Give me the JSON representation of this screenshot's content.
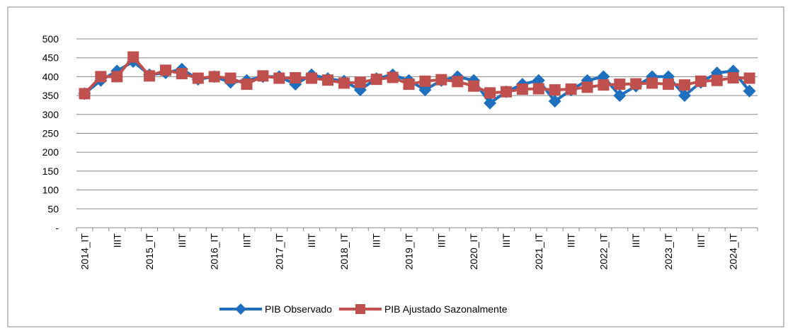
{
  "chart_data": {
    "type": "line",
    "categories": [
      "2014_IT",
      null,
      "IIIT",
      null,
      "2015_IT",
      null,
      "IIIT",
      null,
      "2016_IT",
      null,
      "IIIT",
      null,
      "2017_IT",
      null,
      "IIIT",
      null,
      "2018_IT",
      null,
      "IIIT",
      null,
      "2019_IT",
      null,
      "IIIT",
      null,
      "2020_IT",
      null,
      "IIIT",
      null,
      "2021_IT",
      null,
      "IIIT",
      null,
      "2022_IT",
      null,
      "IIIT",
      null,
      "2023_IT",
      null,
      "IIIT",
      null,
      "2024_IT",
      null
    ],
    "series": [
      {
        "name": "PIB Observado",
        "color": "#1f6fbf",
        "marker": "diamond",
        "values": [
          355,
          390,
          415,
          440,
          405,
          410,
          420,
          393,
          400,
          385,
          390,
          400,
          400,
          380,
          405,
          395,
          388,
          365,
          395,
          405,
          390,
          365,
          390,
          400,
          390,
          330,
          360,
          380,
          390,
          335,
          365,
          390,
          400,
          350,
          375,
          400,
          400,
          350,
          385,
          410,
          415,
          362
        ]
      },
      {
        "name": "PIB Ajustado Sazonalmente",
        "color": "#c0504d",
        "marker": "square",
        "values": [
          355,
          400,
          400,
          452,
          402,
          417,
          408,
          396,
          400,
          396,
          380,
          402,
          396,
          397,
          396,
          391,
          383,
          385,
          393,
          398,
          380,
          388,
          392,
          387,
          375,
          357,
          360,
          367,
          368,
          365,
          367,
          372,
          378,
          380,
          381,
          383,
          380,
          378,
          388,
          390,
          397,
          396
        ]
      }
    ],
    "ylim": [
      0,
      500
    ],
    "yticks": [
      {
        "value": 0,
        "label": "-"
      },
      50,
      100,
      150,
      200,
      250,
      300,
      350,
      400,
      450,
      500
    ],
    "grid": true,
    "legend": "bottom"
  }
}
